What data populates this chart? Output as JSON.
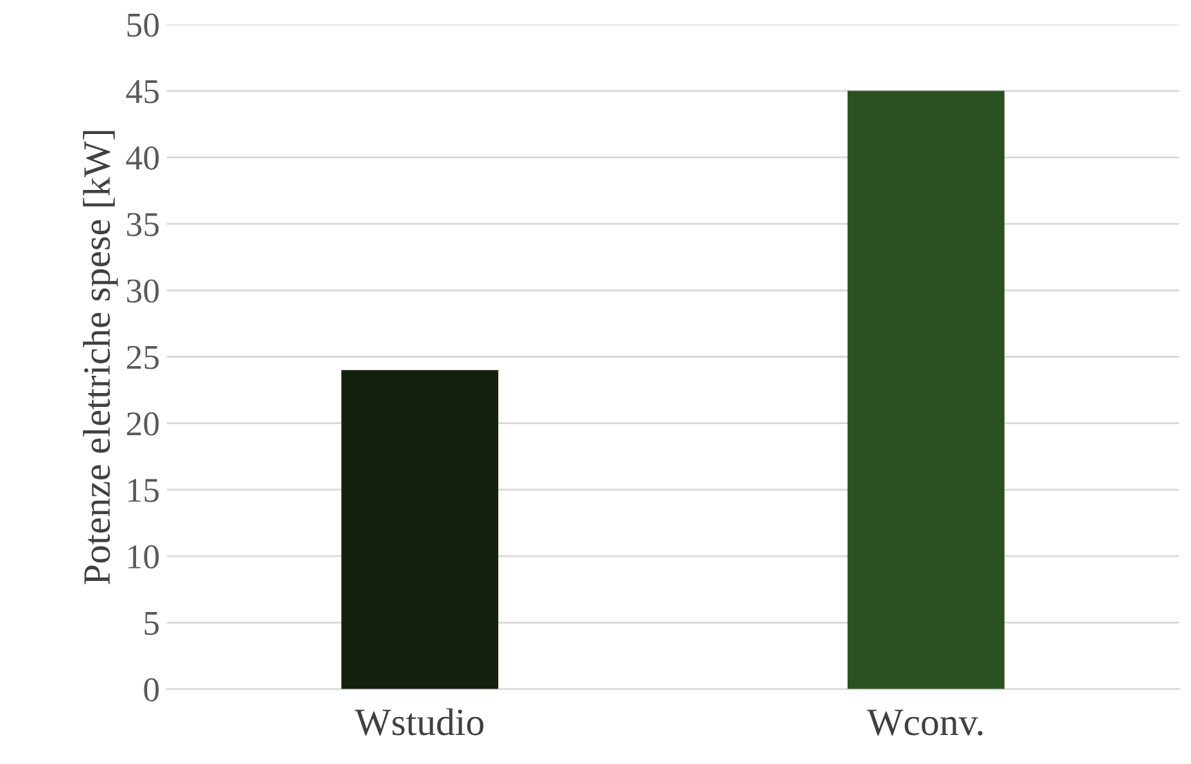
{
  "chart_data": {
    "type": "bar",
    "ylabel": "Potenze elettriche spese [kW]",
    "categories": [
      "Wstudio",
      "Wconv."
    ],
    "values": [
      24,
      45
    ],
    "colors": [
      "#13200e",
      "#2a5220"
    ],
    "ylim": [
      0,
      50
    ],
    "yticks": [
      0,
      5,
      10,
      15,
      20,
      25,
      30,
      35,
      40,
      45,
      50
    ],
    "grid": "y",
    "legend": false
  }
}
